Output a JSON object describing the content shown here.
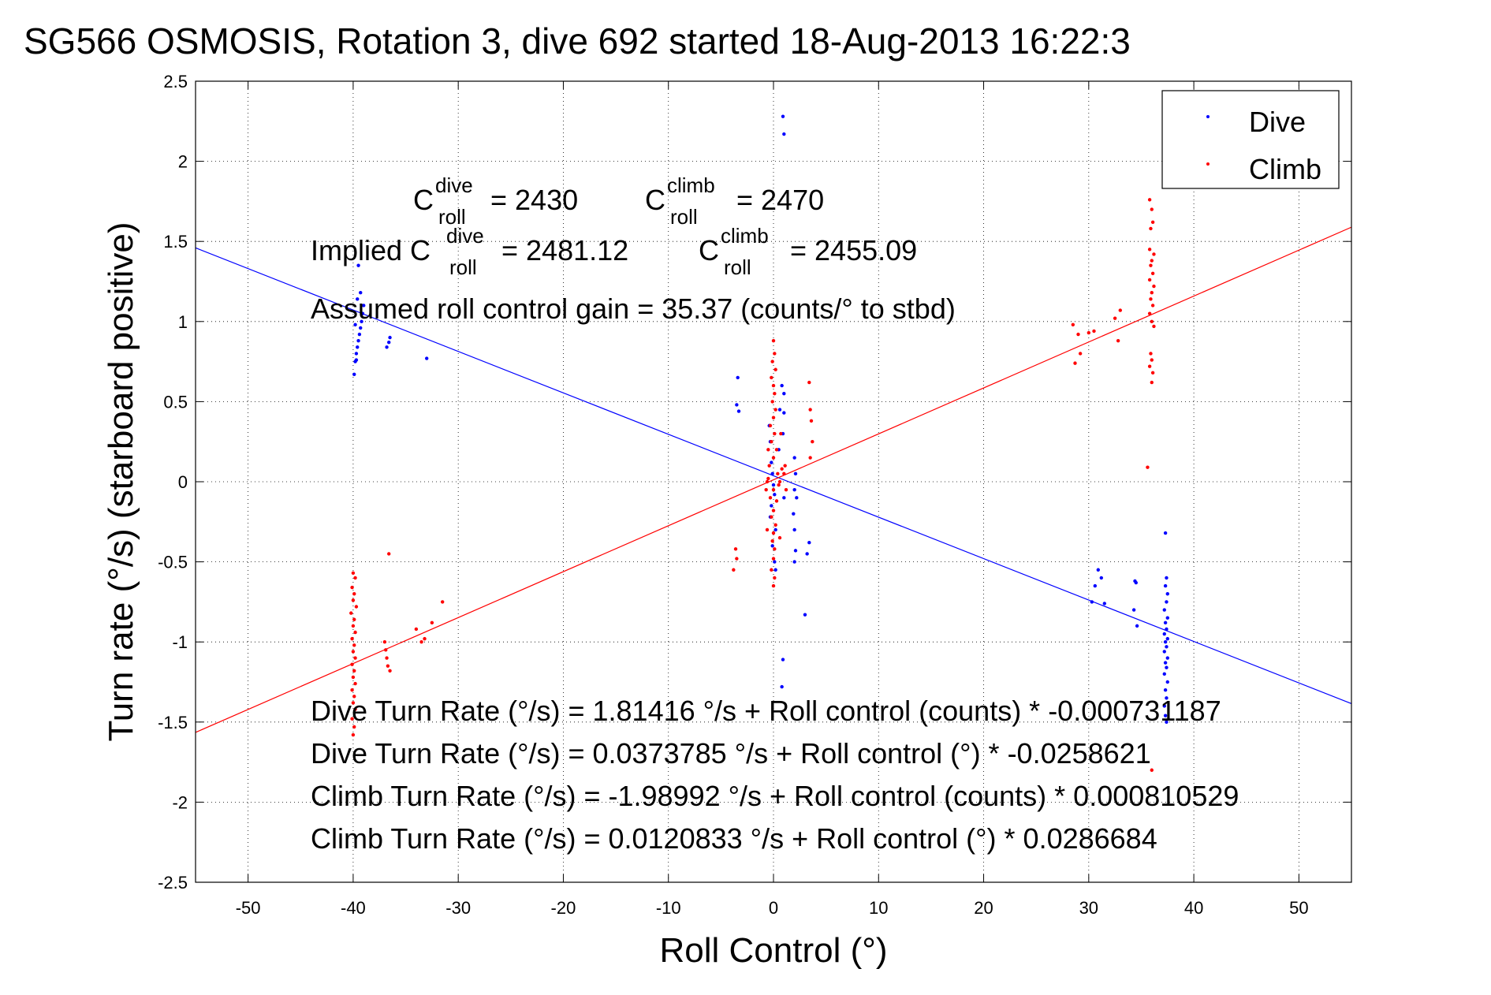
{
  "chart_data": {
    "type": "scatter",
    "title": "SG566 OSMOSIS, Rotation 3, dive 692 started 18-Aug-2013 16:22:3",
    "xlabel": "Roll Control (°)",
    "ylabel": "Turn rate (°/s) (starboard positive)",
    "xlim": [
      -55,
      55
    ],
    "ylim": [
      -2.5,
      2.5
    ],
    "x_ticks": [
      -50,
      -40,
      -30,
      -20,
      -10,
      0,
      10,
      20,
      30,
      40,
      50
    ],
    "x_tick_labels": [
      "-50",
      "-40",
      "-30",
      "-20",
      "-10",
      "0",
      "10",
      "20",
      "30",
      "40",
      "50"
    ],
    "y_ticks": [
      2.5,
      2,
      1.5,
      1,
      0.5,
      0,
      -0.5,
      -1,
      -1.5,
      -2,
      -2.5
    ],
    "y_tick_labels": [
      "2.5",
      "2",
      "1.5",
      "1",
      "0.5",
      "0",
      "-0.5",
      "-1",
      "-1.5",
      "-2",
      "-2.5"
    ],
    "grid": true,
    "legend_position": "top-right",
    "series": [
      {
        "name": "Dive",
        "color": "#0000ff",
        "marker": "dot",
        "points": [
          [
            -39.9,
            0.67
          ],
          [
            -39.8,
            0.75
          ],
          [
            -39.7,
            0.8
          ],
          [
            -39.6,
            0.84
          ],
          [
            -39.5,
            0.88
          ],
          [
            -39.4,
            0.92
          ],
          [
            -39.3,
            0.96
          ],
          [
            -39.2,
            1.0
          ],
          [
            -39.1,
            1.05
          ],
          [
            -39.0,
            1.1
          ],
          [
            -39.3,
            1.18
          ],
          [
            -39.6,
            1.14
          ],
          [
            -39.5,
            1.35
          ],
          [
            -39.8,
            0.98
          ],
          [
            -39.7,
            0.76
          ],
          [
            -36.8,
            0.84
          ],
          [
            -36.6,
            0.87
          ],
          [
            -36.5,
            0.9
          ],
          [
            -33.0,
            0.77
          ],
          [
            -3.4,
            0.65
          ],
          [
            -3.5,
            0.48
          ],
          [
            -3.3,
            0.44
          ],
          [
            -0.4,
            0.35
          ],
          [
            -0.3,
            0.25
          ],
          [
            -0.2,
            0.12
          ],
          [
            -0.1,
            0.05
          ],
          [
            0.0,
            -0.02
          ],
          [
            0.1,
            -0.08
          ],
          [
            -0.2,
            -0.15
          ],
          [
            -0.3,
            -0.22
          ],
          [
            0.2,
            -0.3
          ],
          [
            -0.1,
            -0.4
          ],
          [
            0.1,
            -0.5
          ],
          [
            0.2,
            -0.55
          ],
          [
            0.5,
            0.2
          ],
          [
            0.6,
            0.45
          ],
          [
            0.8,
            0.6
          ],
          [
            1.0,
            0.55
          ],
          [
            1.0,
            0.43
          ],
          [
            0.9,
            0.3
          ],
          [
            1.0,
            -0.1
          ],
          [
            0.9,
            2.28
          ],
          [
            1.0,
            2.17
          ],
          [
            2.0,
            0.15
          ],
          [
            2.1,
            0.05
          ],
          [
            2.0,
            -0.05
          ],
          [
            2.2,
            -0.1
          ],
          [
            1.9,
            -0.2
          ],
          [
            2.0,
            -0.3
          ],
          [
            2.1,
            -0.43
          ],
          [
            2.0,
            -0.5
          ],
          [
            3.4,
            -0.38
          ],
          [
            3.2,
            -0.45
          ],
          [
            3.0,
            -0.83
          ],
          [
            0.9,
            -1.11
          ],
          [
            0.8,
            -1.28
          ],
          [
            30.3,
            -0.75
          ],
          [
            30.6,
            -0.65
          ],
          [
            30.9,
            -0.55
          ],
          [
            31.2,
            -0.6
          ],
          [
            31.5,
            -0.76
          ],
          [
            34.4,
            -0.62
          ],
          [
            34.5,
            -0.63
          ],
          [
            34.3,
            -0.8
          ],
          [
            34.6,
            -0.9
          ],
          [
            37.3,
            -0.32
          ],
          [
            37.4,
            -0.6
          ],
          [
            37.3,
            -0.65
          ],
          [
            37.5,
            -0.7
          ],
          [
            37.4,
            -0.75
          ],
          [
            37.2,
            -0.8
          ],
          [
            37.5,
            -0.85
          ],
          [
            37.3,
            -0.88
          ],
          [
            37.4,
            -0.92
          ],
          [
            37.2,
            -0.95
          ],
          [
            37.5,
            -0.98
          ],
          [
            37.3,
            -1.0
          ],
          [
            37.4,
            -1.03
          ],
          [
            37.2,
            -1.06
          ],
          [
            37.5,
            -1.1
          ],
          [
            37.3,
            -1.13
          ],
          [
            37.4,
            -1.16
          ],
          [
            37.2,
            -1.2
          ],
          [
            37.5,
            -1.25
          ],
          [
            37.3,
            -1.3
          ],
          [
            37.4,
            -1.35
          ],
          [
            37.2,
            -1.4
          ],
          [
            37.3,
            -1.46
          ],
          [
            37.4,
            -1.5
          ]
        ]
      },
      {
        "name": "Climb",
        "color": "#ff0000",
        "marker": "dot",
        "points": [
          [
            -40.0,
            -0.57
          ],
          [
            -39.8,
            -0.6
          ],
          [
            -40.1,
            -0.66
          ],
          [
            -39.9,
            -0.7
          ],
          [
            -40.0,
            -0.74
          ],
          [
            -39.7,
            -0.78
          ],
          [
            -40.2,
            -0.82
          ],
          [
            -39.9,
            -0.86
          ],
          [
            -40.0,
            -0.9
          ],
          [
            -39.8,
            -0.94
          ],
          [
            -40.1,
            -0.98
          ],
          [
            -39.9,
            -1.02
          ],
          [
            -40.0,
            -1.06
          ],
          [
            -39.8,
            -1.1
          ],
          [
            -40.1,
            -1.14
          ],
          [
            -39.9,
            -1.18
          ],
          [
            -40.0,
            -1.22
          ],
          [
            -39.8,
            -1.26
          ],
          [
            -40.1,
            -1.3
          ],
          [
            -39.9,
            -1.34
          ],
          [
            -40.0,
            -1.38
          ],
          [
            -39.8,
            -1.42
          ],
          [
            -40.1,
            -1.48
          ],
          [
            -39.9,
            -1.53
          ],
          [
            -40.0,
            -1.58
          ],
          [
            -36.6,
            -0.45
          ],
          [
            -37.0,
            -1.0
          ],
          [
            -36.9,
            -1.05
          ],
          [
            -36.8,
            -1.1
          ],
          [
            -36.7,
            -1.15
          ],
          [
            -36.5,
            -1.18
          ],
          [
            -34.0,
            -0.92
          ],
          [
            -33.5,
            -1.0
          ],
          [
            -33.2,
            -0.98
          ],
          [
            -32.5,
            -0.88
          ],
          [
            -31.5,
            -0.75
          ],
          [
            -3.6,
            -0.42
          ],
          [
            -3.5,
            -0.48
          ],
          [
            -3.8,
            -0.55
          ],
          [
            0.0,
            0.88
          ],
          [
            0.1,
            0.8
          ],
          [
            -0.1,
            0.75
          ],
          [
            0.2,
            0.7
          ],
          [
            -0.2,
            0.65
          ],
          [
            0.0,
            0.6
          ],
          [
            0.1,
            0.55
          ],
          [
            -0.1,
            0.5
          ],
          [
            0.2,
            0.45
          ],
          [
            0.0,
            0.4
          ],
          [
            -0.3,
            0.35
          ],
          [
            0.1,
            0.3
          ],
          [
            -0.2,
            0.25
          ],
          [
            0.3,
            0.2
          ],
          [
            0.0,
            0.15
          ],
          [
            -0.4,
            0.1
          ],
          [
            0.4,
            0.05
          ],
          [
            -0.5,
            0.02
          ],
          [
            0.5,
            -0.02
          ],
          [
            0.0,
            -0.05
          ],
          [
            -0.3,
            -0.1
          ],
          [
            0.3,
            -0.12
          ],
          [
            0.0,
            -0.18
          ],
          [
            -0.2,
            -0.22
          ],
          [
            0.2,
            -0.27
          ],
          [
            0.0,
            -0.32
          ],
          [
            -0.1,
            -0.37
          ],
          [
            0.1,
            -0.42
          ],
          [
            0.0,
            -0.48
          ],
          [
            -0.2,
            -0.55
          ],
          [
            0.1,
            -0.6
          ],
          [
            0.0,
            -0.65
          ],
          [
            -0.6,
            0.0
          ],
          [
            0.6,
            0.0
          ],
          [
            -0.7,
            -0.05
          ],
          [
            0.8,
            0.08
          ],
          [
            -0.5,
            0.2
          ],
          [
            0.7,
            0.3
          ],
          [
            -0.6,
            -0.3
          ],
          [
            0.6,
            -0.35
          ],
          [
            1.0,
            0.05
          ],
          [
            1.2,
            -0.05
          ],
          [
            1.1,
            0.1
          ],
          [
            3.4,
            0.62
          ],
          [
            3.5,
            0.45
          ],
          [
            3.6,
            0.38
          ],
          [
            3.7,
            0.25
          ],
          [
            3.5,
            0.15
          ],
          [
            28.5,
            0.98
          ],
          [
            29.0,
            0.92
          ],
          [
            28.7,
            0.74
          ],
          [
            29.2,
            0.8
          ],
          [
            30.0,
            0.93
          ],
          [
            30.5,
            0.94
          ],
          [
            32.5,
            1.02
          ],
          [
            33.0,
            1.07
          ],
          [
            32.8,
            0.88
          ],
          [
            35.8,
            1.76
          ],
          [
            36.0,
            1.7
          ],
          [
            36.1,
            1.62
          ],
          [
            35.9,
            1.58
          ],
          [
            35.8,
            1.45
          ],
          [
            36.2,
            1.42
          ],
          [
            36.0,
            1.38
          ],
          [
            35.9,
            1.35
          ],
          [
            36.1,
            1.3
          ],
          [
            35.8,
            1.26
          ],
          [
            36.2,
            1.22
          ],
          [
            36.0,
            1.18
          ],
          [
            35.9,
            1.14
          ],
          [
            36.1,
            1.1
          ],
          [
            35.8,
            1.05
          ],
          [
            36.0,
            1.0
          ],
          [
            36.2,
            0.97
          ],
          [
            35.9,
            0.8
          ],
          [
            36.0,
            0.76
          ],
          [
            35.8,
            0.72
          ],
          [
            36.1,
            0.68
          ],
          [
            36.0,
            0.62
          ],
          [
            35.6,
            0.09
          ],
          [
            36.0,
            -1.8
          ]
        ]
      }
    ],
    "fit_lines": [
      {
        "name": "Dive fit",
        "color": "#0000ff",
        "intercept": 0.0373785,
        "slope": -0.0258621
      },
      {
        "name": "Climb fit",
        "color": "#ff0000",
        "intercept": 0.0120833,
        "slope": 0.0286684
      }
    ],
    "annotations": {
      "c_label": "C",
      "roll_sub": "roll",
      "dive_sup": "dive",
      "climb_sup": "climb",
      "c_dive_value": "= 2430",
      "c_climb_value": "= 2470",
      "implied_prefix": "Implied C",
      "implied_dive_value": "= 2481.12",
      "implied_climb_value": "= 2455.09",
      "gain": "Assumed roll control gain = 35.37 (counts/° to stbd)",
      "dive_counts": "Dive Turn Rate (°/s) = 1.81416 °/s + Roll control (counts) * -0.000731187",
      "dive_degrees": "Dive Turn Rate (°/s) = 0.0373785 °/s + Roll control (°) * -0.0258621",
      "climb_counts": "Climb Turn Rate (°/s) = -1.98992 °/s + Roll control (counts) * 0.000810529",
      "climb_degrees": "Climb Turn Rate (°/s) = 0.0120833 °/s + Roll control (°) * 0.0286684"
    }
  }
}
